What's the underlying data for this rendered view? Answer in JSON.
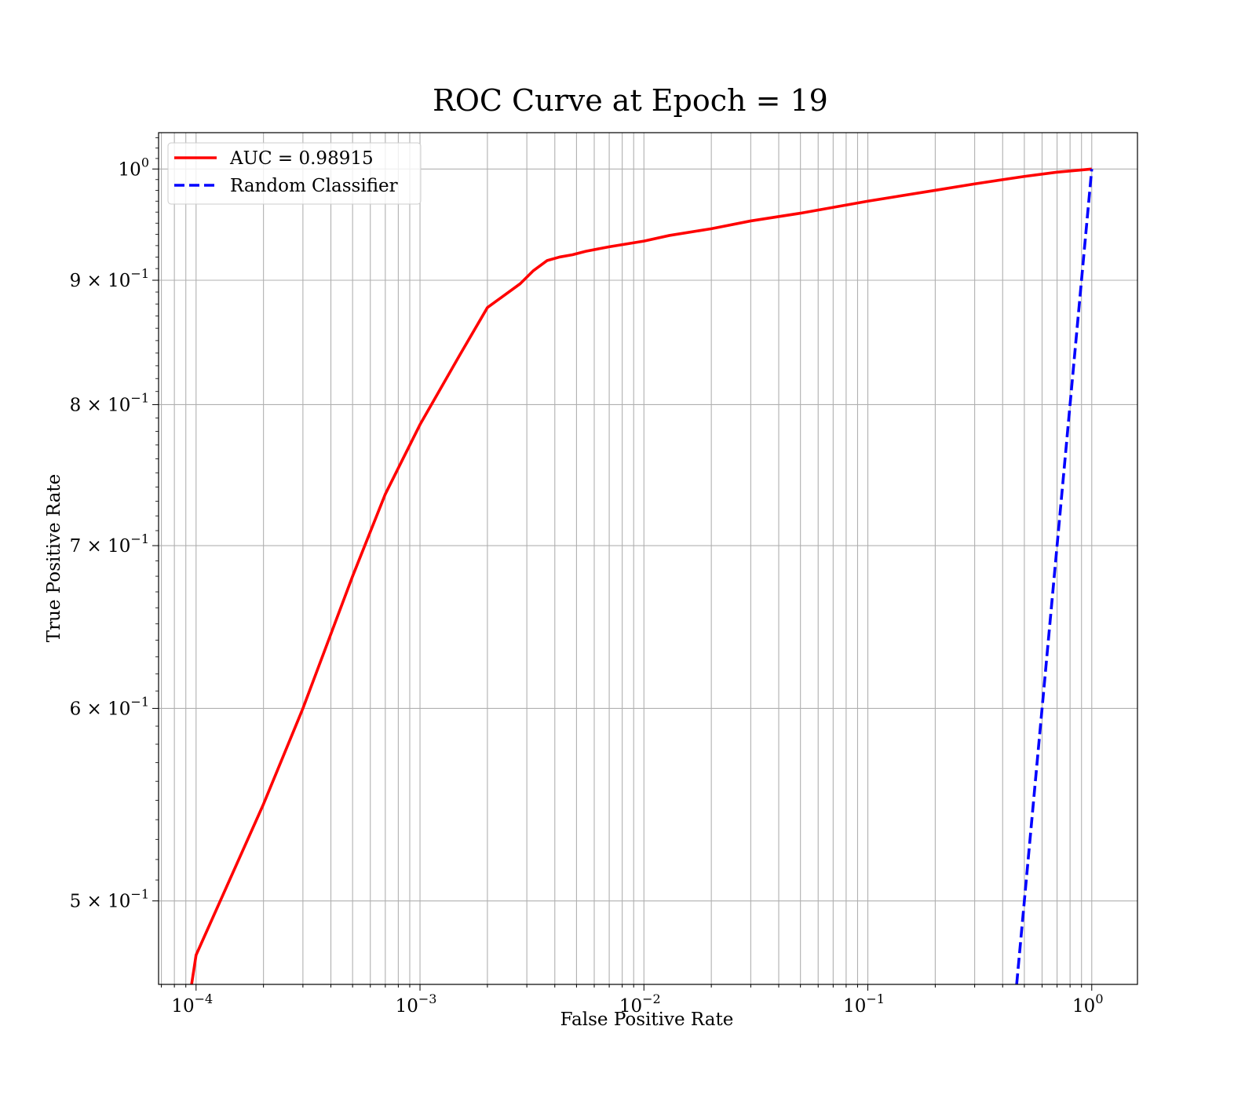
{
  "chart_data": {
    "type": "line",
    "title": "ROC Curve at Epoch = 19",
    "xlabel": "False Positive Rate",
    "ylabel": "True Positive Rate",
    "xscale": "log",
    "yscale": "log",
    "xlim": [
      6.8e-05,
      1.6
    ],
    "ylim": [
      0.462,
      1.035
    ],
    "grid": true,
    "grid_minor": true,
    "legend_position": "top-left",
    "x_ticks": [
      {
        "base": "10",
        "exp": "−4",
        "value": 0.0001
      },
      {
        "base": "10",
        "exp": "−3",
        "value": 0.001
      },
      {
        "base": "10",
        "exp": "−2",
        "value": 0.01
      },
      {
        "base": "10",
        "exp": "−1",
        "value": 0.1
      },
      {
        "base": "10",
        "exp": "0",
        "value": 1
      }
    ],
    "y_ticks": [
      {
        "mant": "",
        "base": "10",
        "exp": "0",
        "value": 1.0
      },
      {
        "mant": "9 × ",
        "base": "10",
        "exp": "−1",
        "value": 0.9
      },
      {
        "mant": "8 × ",
        "base": "10",
        "exp": "−1",
        "value": 0.8
      },
      {
        "mant": "7 × ",
        "base": "10",
        "exp": "−1",
        "value": 0.7
      },
      {
        "mant": "6 × ",
        "base": "10",
        "exp": "−1",
        "value": 0.6
      },
      {
        "mant": "5 × ",
        "base": "10",
        "exp": "−1",
        "value": 0.5
      }
    ],
    "series": [
      {
        "name": "AUC = 0.98915",
        "color": "#ff0000",
        "style": "solid",
        "x": [
          9.55e-05,
          0.0001,
          0.0002,
          0.0003,
          0.0005,
          0.0007,
          0.001,
          0.0015,
          0.002,
          0.0028,
          0.0032,
          0.0037,
          0.0042,
          0.0048,
          0.0055,
          0.007,
          0.01,
          0.013,
          0.02,
          0.03,
          0.05,
          0.1,
          0.2,
          0.3,
          0.5,
          0.7,
          1.0
        ],
        "y": [
          0.462,
          0.475,
          0.548,
          0.6,
          0.68,
          0.735,
          0.785,
          0.838,
          0.877,
          0.897,
          0.908,
          0.917,
          0.92,
          0.922,
          0.925,
          0.929,
          0.934,
          0.939,
          0.945,
          0.952,
          0.959,
          0.97,
          0.98,
          0.986,
          0.993,
          0.997,
          1.0
        ]
      },
      {
        "name": "Random Classifier",
        "color": "#0000ff",
        "style": "dashed",
        "x": [
          0.462,
          1.0
        ],
        "y": [
          0.462,
          1.0
        ]
      }
    ]
  }
}
